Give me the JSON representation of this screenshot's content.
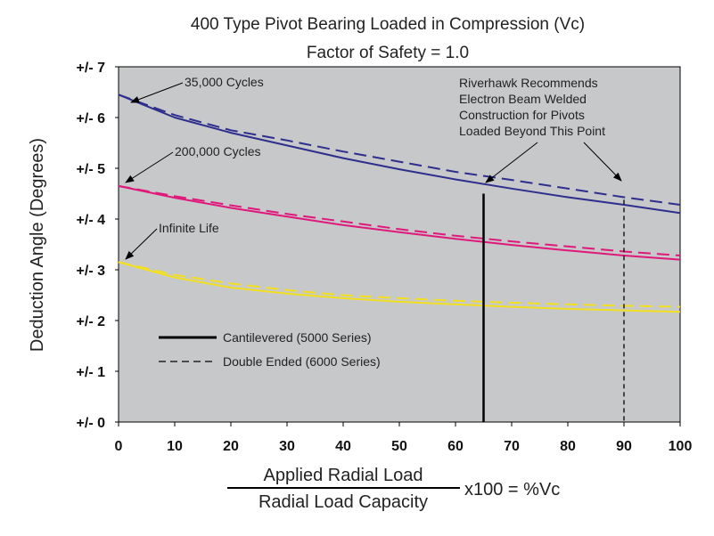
{
  "chart_data": {
    "type": "line",
    "title": "400 Type Pivot Bearing Loaded in Compression (Vc)",
    "subtitle": "Factor of Safety = 1.0",
    "ylabel": "Deduction Angle (Degrees)",
    "xlabel_numerator": "Applied Radial Load",
    "xlabel_denominator": "Radial Load Capacity",
    "xlabel_suffix": "x100 = %Vc",
    "xlim": [
      0,
      100
    ],
    "ylim": [
      0,
      7
    ],
    "x_ticks": [
      "0",
      "10",
      "20",
      "30",
      "40",
      "50",
      "60",
      "70",
      "80",
      "90",
      "100"
    ],
    "y_ticks": [
      "+/- 0",
      "+/- 1",
      "+/- 2",
      "+/- 3",
      "+/- 4",
      "+/- 5",
      "+/- 6",
      "+/- 7"
    ],
    "grid": false,
    "background_color": "#c6c8ca",
    "x": [
      0,
      10,
      20,
      30,
      40,
      50,
      60,
      70,
      80,
      90,
      100
    ],
    "series": [
      {
        "group": "35,000 Cycles",
        "style": "Cantilevered (5000 Series)",
        "color": "#2e2e8c",
        "values": [
          6.45,
          6.0,
          5.7,
          5.45,
          5.2,
          4.98,
          4.78,
          4.6,
          4.43,
          4.28,
          4.12
        ]
      },
      {
        "group": "35,000 Cycles",
        "style": "Double Ended (6000 Series)",
        "color": "#2e2e8c",
        "values": [
          6.45,
          6.05,
          5.75,
          5.55,
          5.33,
          5.13,
          4.93,
          4.77,
          4.6,
          4.43,
          4.28
        ]
      },
      {
        "group": "200,000 Cycles",
        "style": "Cantilevered (5000 Series)",
        "color": "#e0187a",
        "values": [
          4.65,
          4.42,
          4.22,
          4.05,
          3.88,
          3.74,
          3.61,
          3.49,
          3.38,
          3.28,
          3.2
        ]
      },
      {
        "group": "200,000 Cycles",
        "style": "Double Ended (6000 Series)",
        "color": "#e0187a",
        "values": [
          4.65,
          4.45,
          4.27,
          4.1,
          3.95,
          3.8,
          3.67,
          3.56,
          3.46,
          3.36,
          3.28
        ]
      },
      {
        "group": "Infinite Life",
        "style": "Cantilevered (5000 Series)",
        "color": "#f2e020",
        "values": [
          3.15,
          2.85,
          2.65,
          2.53,
          2.44,
          2.37,
          2.32,
          2.27,
          2.23,
          2.2,
          2.17
        ]
      },
      {
        "group": "Infinite Life",
        "style": "Double Ended (6000 Series)",
        "color": "#f2e020",
        "values": [
          3.15,
          2.9,
          2.73,
          2.6,
          2.5,
          2.44,
          2.39,
          2.35,
          2.32,
          2.29,
          2.27
        ]
      }
    ],
    "vertical_markers": [
      {
        "x": 65,
        "style": "solid"
      },
      {
        "x": 90,
        "style": "dashed"
      }
    ],
    "annotations": [
      {
        "id": "a35k",
        "text": "35,000 Cycles",
        "arrow_to": [
          0.5,
          6.45
        ]
      },
      {
        "id": "a200k",
        "text": "200,000 Cycles",
        "arrow_to": [
          0.5,
          4.65
        ]
      },
      {
        "id": "ainf",
        "text": "Infinite Life",
        "arrow_to": [
          0.5,
          3.15
        ]
      },
      {
        "id": "ariver",
        "lines": [
          "Riverhawk Recommends",
          "Electron Beam Welded",
          "Construction for Pivots",
          "Loaded Beyond This Point"
        ],
        "arrows_to": [
          [
            65,
            4.7
          ],
          [
            90,
            4.38
          ]
        ]
      }
    ],
    "legend": {
      "placement": "lower-left",
      "entries": [
        {
          "label": "Cantilevered (5000 Series)",
          "style": "solid"
        },
        {
          "label": "Double Ended (6000 Series)",
          "style": "dashed"
        }
      ]
    }
  }
}
